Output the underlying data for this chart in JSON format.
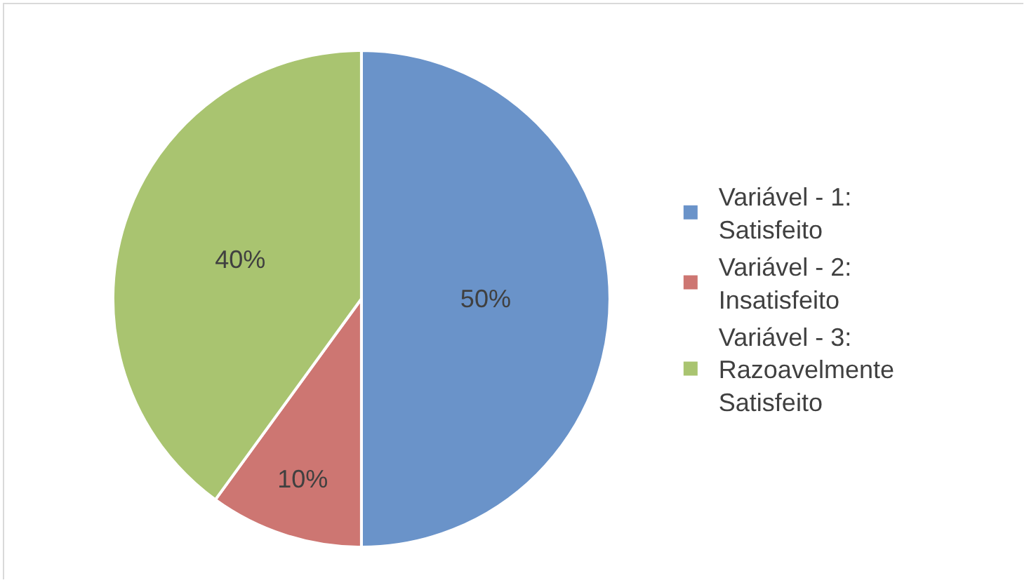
{
  "chart_data": {
    "type": "pie",
    "categories": [
      "Variável - 1: Satisfeito",
      "Variável - 2: Insatisfeito",
      "Variável - 3: Razoavelmente Satisfeito"
    ],
    "values": [
      50,
      10,
      40
    ],
    "colors": [
      "#6a93c9",
      "#cd7672",
      "#a9c470"
    ],
    "value_labels": [
      "50%",
      "10%",
      "40%"
    ],
    "legend": "right"
  }
}
